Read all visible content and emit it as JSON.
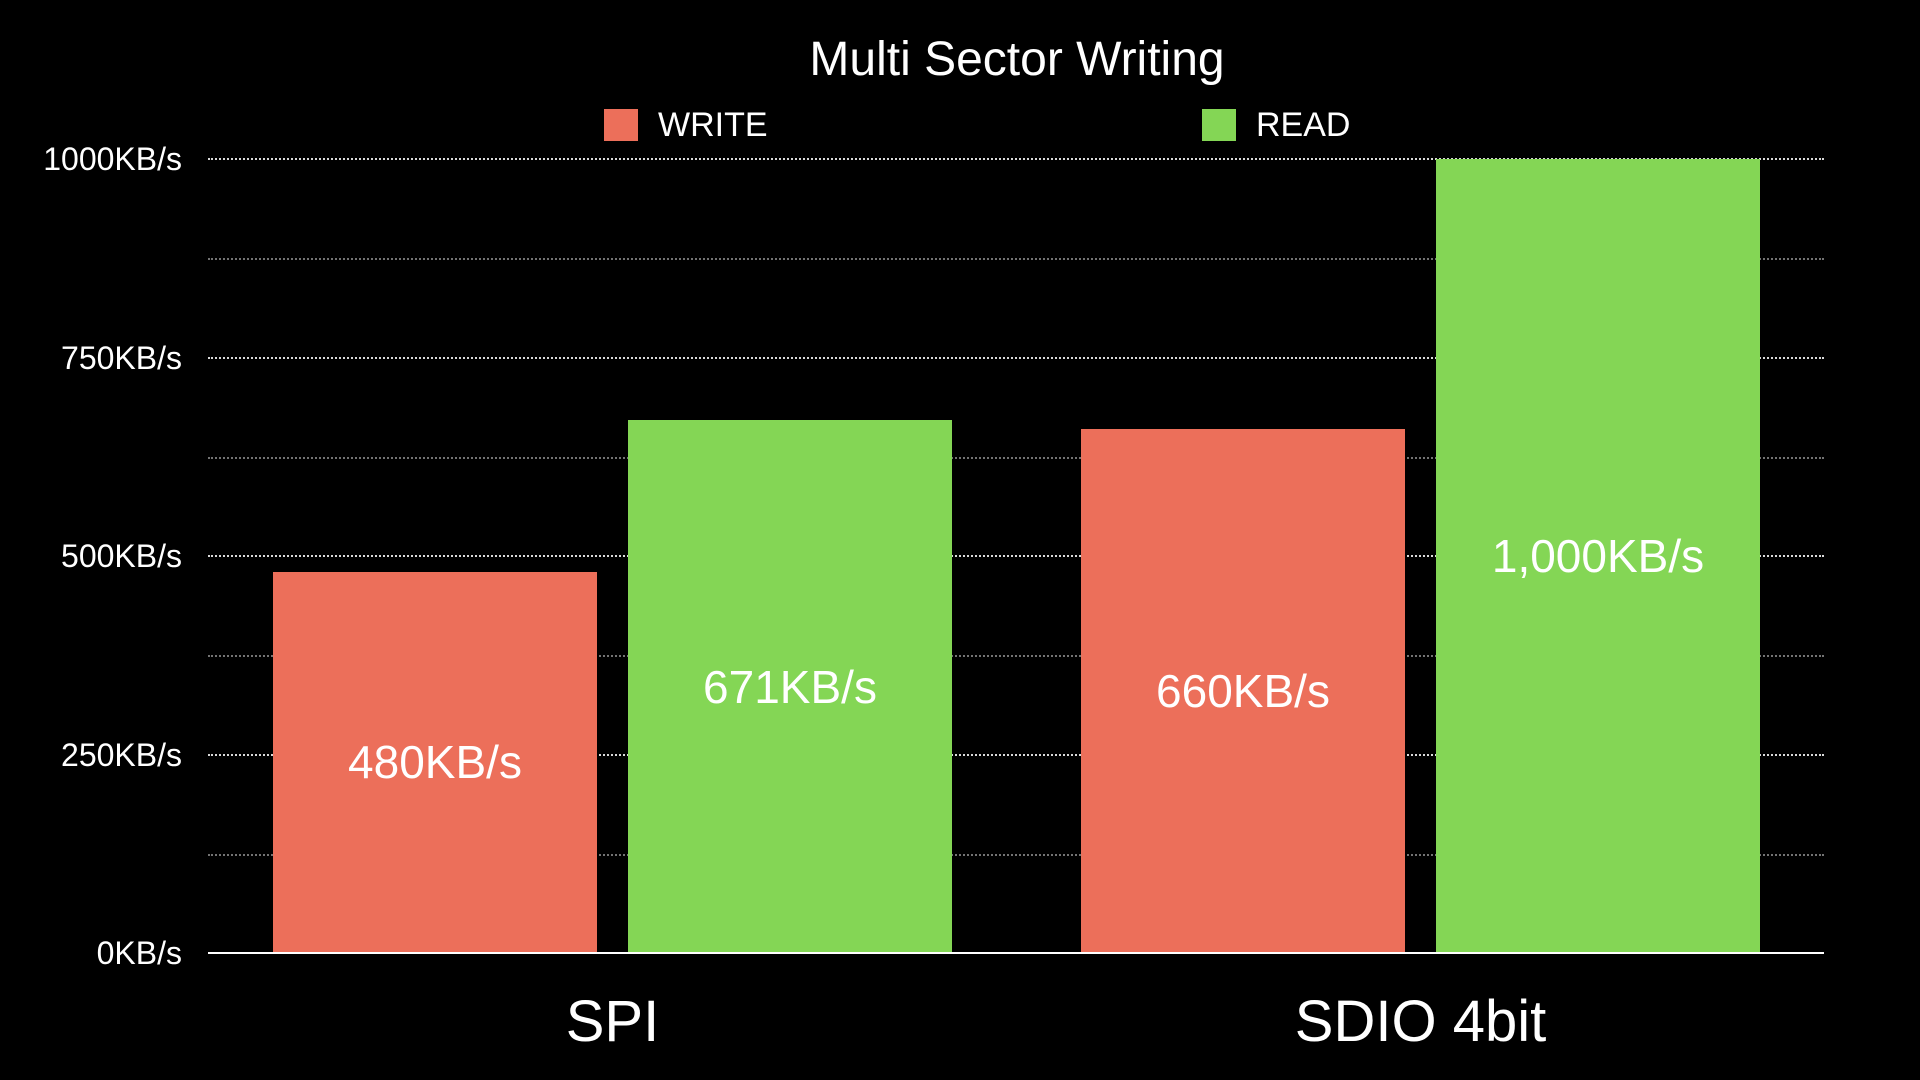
{
  "chart_data": {
    "type": "bar",
    "title": "Multi Sector Writing",
    "categories": [
      "SPI",
      "SDIO 4bit"
    ],
    "series": [
      {
        "name": "WRITE",
        "color": "#EC6F5A",
        "values": [
          480,
          660
        ],
        "labels": [
          "480KB/s",
          "660KB/s"
        ]
      },
      {
        "name": "READ",
        "color": "#84D655",
        "values": [
          671,
          1000
        ],
        "labels": [
          "671KB/s",
          "1,000KB/s"
        ]
      }
    ],
    "xlabel": "",
    "ylabel": "",
    "ylim": [
      0,
      1000
    ],
    "yticks": [
      0,
      250,
      500,
      750,
      1000
    ],
    "ytick_labels": [
      "0KB/s",
      "250KB/s",
      "500KB/s",
      "750KB/s",
      "1000KB/s"
    ],
    "minor_gridlines": [
      125,
      375,
      625,
      875
    ],
    "grid": true,
    "legend_position": "top",
    "background": "#000000"
  },
  "legend": [
    {
      "label": "WRITE",
      "color": "#EC6F5A"
    },
    {
      "label": "READ",
      "color": "#84D655"
    }
  ]
}
